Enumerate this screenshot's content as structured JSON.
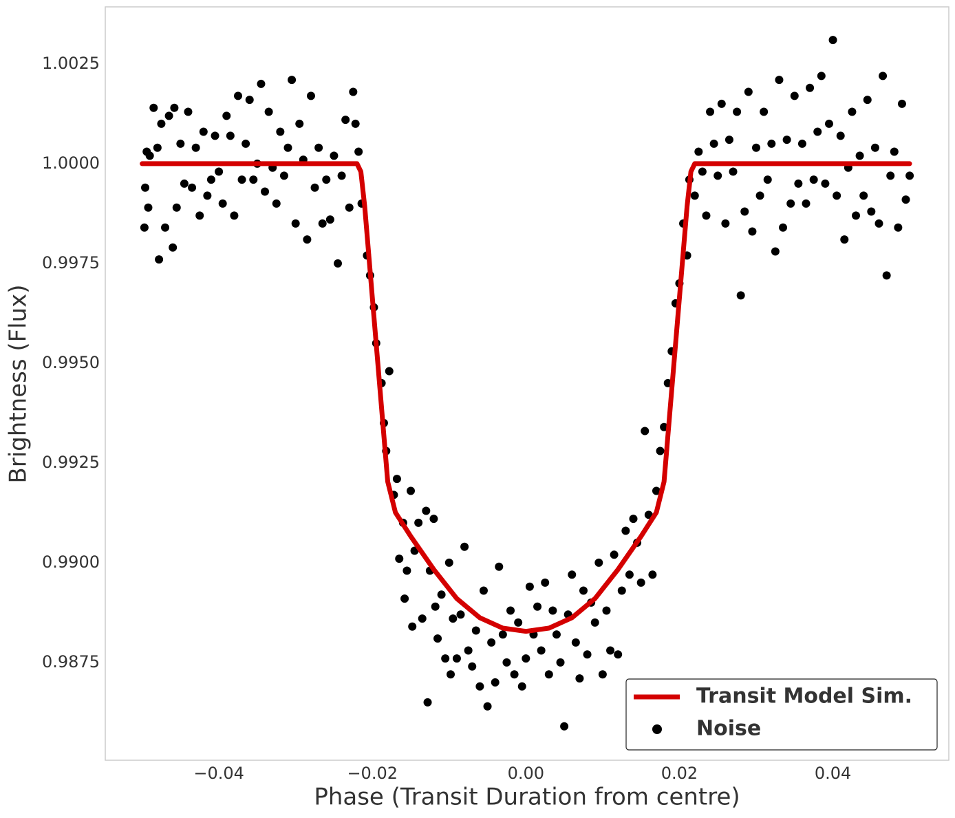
{
  "chart_data": {
    "type": "line",
    "x_label": "Phase (Transit Duration from centre)",
    "y_label": "Brightness (Flux)",
    "xlim": [
      -0.0548,
      0.0551
    ],
    "ylim": [
      0.98505,
      1.00393
    ],
    "xticks": [
      {
        "value": -0.04,
        "label": "−0.04"
      },
      {
        "value": -0.02,
        "label": "−0.02"
      },
      {
        "value": 0,
        "label": "0.00"
      },
      0.02,
      0.04
    ],
    "yticks": [
      0.9875,
      {
        "value": 0.99,
        "label": "0.9900"
      },
      0.9925,
      {
        "value": 0.995,
        "label": "0.9950"
      },
      0.9975,
      {
        "value": 1,
        "label": "1.0000"
      },
      1.0025
    ],
    "grid": false,
    "legend": "lower right",
    "series": [
      {
        "name": "Transit Model Sim.",
        "type": "line",
        "color": "#d40000",
        "x": [
          -0.05,
          -0.022,
          -0.0215,
          -0.021,
          -0.0195,
          -0.018,
          -0.017,
          -0.015,
          -0.012,
          -0.009,
          -0.006,
          -0.003,
          0,
          0.003,
          0.006,
          0.009,
          0.012,
          0.015,
          0.017,
          0.018,
          0.0195,
          0.021,
          0.0215,
          0.022,
          0.05
        ],
        "values": [
          1,
          1,
          0.9998,
          0.99893,
          0.99548,
          0.99203,
          0.99126,
          0.99066,
          0.98983,
          0.9891,
          0.98862,
          0.98836,
          0.98828,
          0.98836,
          0.98862,
          0.9891,
          0.98983,
          0.99066,
          0.99126,
          0.99203,
          0.99548,
          0.99893,
          0.9998,
          1,
          1
        ]
      },
      {
        "name": "Noise",
        "type": "scatter",
        "color": "#000000",
        "x": [
          -0.0497,
          -0.0496,
          -0.0494,
          -0.0492,
          -0.049,
          -0.0485,
          -0.048,
          -0.0478,
          -0.0475,
          -0.047,
          -0.0465,
          -0.046,
          -0.0458,
          -0.0455,
          -0.045,
          -0.0445,
          -0.044,
          -0.0435,
          -0.043,
          -0.0425,
          -0.042,
          -0.0415,
          -0.041,
          -0.0405,
          -0.04,
          -0.0395,
          -0.039,
          -0.0385,
          -0.038,
          -0.0375,
          -0.037,
          -0.0365,
          -0.036,
          -0.0355,
          -0.035,
          -0.0345,
          -0.034,
          -0.0335,
          -0.033,
          -0.0325,
          -0.032,
          -0.0315,
          -0.031,
          -0.0305,
          -0.03,
          -0.0295,
          -0.029,
          -0.0285,
          -0.028,
          -0.0275,
          -0.027,
          -0.0265,
          -0.026,
          -0.0255,
          -0.025,
          -0.0245,
          -0.024,
          -0.0235,
          -0.023,
          -0.0225,
          -0.0222,
          -0.0218,
          -0.0214,
          -0.0207,
          -0.0203,
          -0.0198,
          -0.0195,
          -0.0188,
          -0.0185,
          -0.0182,
          -0.0178,
          -0.0172,
          -0.0168,
          -0.0165,
          -0.016,
          -0.0158,
          -0.0155,
          -0.015,
          -0.0148,
          -0.0145,
          -0.014,
          -0.0135,
          -0.013,
          -0.0128,
          -0.0125,
          -0.012,
          -0.0118,
          -0.0115,
          -0.011,
          -0.0105,
          -0.01,
          -0.0098,
          -0.0095,
          -0.009,
          -0.0085,
          -0.008,
          -0.0075,
          -0.007,
          -0.0065,
          -0.006,
          -0.0055,
          -0.005,
          -0.0045,
          -0.004,
          -0.0035,
          -0.003,
          -0.0025,
          -0.002,
          -0.0015,
          -0.001,
          -0.0005,
          0,
          0.0005,
          0.001,
          0.0015,
          0.002,
          0.0025,
          0.003,
          0.0035,
          0.004,
          0.0045,
          0.005,
          0.0055,
          0.006,
          0.0065,
          0.007,
          0.0075,
          0.008,
          0.0085,
          0.009,
          0.0095,
          0.01,
          0.0105,
          0.011,
          0.0115,
          0.012,
          0.0125,
          0.013,
          0.0135,
          0.014,
          0.0145,
          0.015,
          0.0155,
          0.016,
          0.0165,
          0.017,
          0.0175,
          0.018,
          0.0185,
          0.019,
          0.0195,
          0.02,
          0.0205,
          0.021,
          0.0213,
          0.022,
          0.0225,
          0.023,
          0.0235,
          0.024,
          0.0245,
          0.025,
          0.0255,
          0.026,
          0.0265,
          0.027,
          0.0275,
          0.028,
          0.0285,
          0.029,
          0.0295,
          0.03,
          0.0305,
          0.031,
          0.0315,
          0.032,
          0.0325,
          0.033,
          0.0335,
          0.034,
          0.0345,
          0.035,
          0.0355,
          0.036,
          0.0365,
          0.037,
          0.0375,
          0.038,
          0.0385,
          0.039,
          0.0395,
          0.04,
          0.0405,
          0.041,
          0.0415,
          0.042,
          0.0425,
          0.043,
          0.0435,
          0.044,
          0.0445,
          0.045,
          0.0455,
          0.046,
          0.0465,
          0.047,
          0.0475,
          0.048,
          0.0485,
          0.049,
          0.0495,
          0.05
        ],
        "values": [
          0.9984,
          0.9994,
          1.0003,
          0.9989,
          1.0002,
          1.0014,
          1.0004,
          0.9976,
          1.001,
          0.9984,
          1.0012,
          0.9979,
          1.0014,
          0.9989,
          1.0005,
          0.9995,
          1.0013,
          0.9994,
          1.0004,
          0.9987,
          1.0008,
          0.9992,
          0.9996,
          1.0007,
          0.9998,
          0.999,
          1.0012,
          1.0007,
          0.9987,
          1.0017,
          0.9996,
          1.0005,
          1.0016,
          0.9996,
          1,
          1.002,
          0.9993,
          1.0013,
          0.9999,
          0.999,
          1.0008,
          0.9997,
          1.0004,
          1.0021,
          0.9985,
          1.001,
          1.0001,
          0.9981,
          1.0017,
          0.9994,
          1.0004,
          0.9985,
          0.9996,
          0.9986,
          1.0002,
          0.9975,
          0.9997,
          1.0011,
          0.9989,
          1.0018,
          1.001,
          1.0003,
          0.999,
          0.9977,
          0.9972,
          0.9964,
          0.9955,
          0.9945,
          0.9935,
          0.9928,
          0.9948,
          0.9917,
          0.9921,
          0.9901,
          0.991,
          0.9891,
          0.9898,
          0.9918,
          0.9884,
          0.9903,
          0.991,
          0.9886,
          0.9913,
          0.9865,
          0.9898,
          0.9911,
          0.9889,
          0.9881,
          0.9892,
          0.9876,
          0.99,
          0.9872,
          0.9886,
          0.9876,
          0.9887,
          0.9904,
          0.9878,
          0.9874,
          0.9883,
          0.9869,
          0.9893,
          0.9864,
          0.988,
          0.987,
          0.9899,
          0.9882,
          0.9875,
          0.9888,
          0.9872,
          0.9885,
          0.9869,
          0.9876,
          0.9894,
          0.9882,
          0.9889,
          0.9878,
          0.9895,
          0.9872,
          0.9888,
          0.9882,
          0.9875,
          0.9859,
          0.9887,
          0.9897,
          0.988,
          0.9871,
          0.9893,
          0.9877,
          0.989,
          0.9885,
          0.99,
          0.9872,
          0.9888,
          0.9878,
          0.9902,
          0.9877,
          0.9893,
          0.9908,
          0.9897,
          0.9911,
          0.9905,
          0.9895,
          0.9933,
          0.9912,
          0.9897,
          0.9918,
          0.9928,
          0.9934,
          0.9945,
          0.9953,
          0.9965,
          0.997,
          0.9985,
          0.9977,
          0.9996,
          0.9992,
          1.0003,
          0.9998,
          0.9987,
          1.0013,
          1.0005,
          0.9997,
          1.0015,
          0.9985,
          1.0006,
          0.9998,
          1.0013,
          0.9967,
          0.9988,
          1.0018,
          0.9983,
          1.0004,
          0.9992,
          1.0013,
          0.9996,
          1.0005,
          0.9978,
          1.0021,
          0.9984,
          1.0006,
          0.999,
          1.0017,
          0.9995,
          1.0005,
          0.999,
          1.0019,
          0.9996,
          1.0008,
          1.0022,
          0.9995,
          1.001,
          1.0031,
          0.9992,
          1.0007,
          0.9981,
          0.9999,
          1.0013,
          0.9987,
          1.0002,
          0.9992,
          1.0016,
          0.9988,
          1.0004,
          0.9985,
          1.0022,
          0.9972,
          0.9997,
          1.0003,
          0.9984,
          1.0015,
          0.9991,
          0.9997
        ]
      }
    ]
  }
}
